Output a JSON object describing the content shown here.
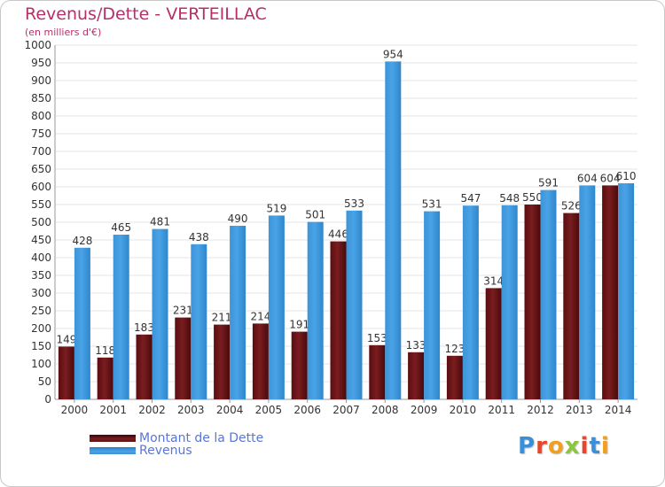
{
  "colors": {
    "dette": "#7a1d20",
    "revenus": "#4aa3e6",
    "title": "#b5306a",
    "legend_text": "#5a76d6",
    "axis_text": "#333333",
    "grid": "#e6e6e6"
  },
  "header": {
    "title": "Revenus/Dette - VERTEILLAC",
    "subtitle": "(en milliers d'€)"
  },
  "legend": {
    "items": [
      {
        "label": "Montant de la Dette",
        "color_key": "dette"
      },
      {
        "label": "Revenus",
        "color_key": "revenus"
      }
    ]
  },
  "logo": {
    "text": "Proxiti",
    "letters": [
      "P",
      "r",
      "o",
      "x",
      "i",
      "t",
      "i"
    ]
  },
  "chart_data": {
    "type": "bar",
    "title": "Revenus/Dette - VERTEILLAC",
    "subtitle": "(en milliers d'€)",
    "categories": [
      "2000",
      "2001",
      "2002",
      "2003",
      "2004",
      "2005",
      "2006",
      "2007",
      "2008",
      "2009",
      "2010",
      "2011",
      "2012",
      "2013",
      "2014"
    ],
    "series": [
      {
        "name": "Montant de la Dette",
        "values": [
          149,
          118,
          183,
          231,
          211,
          214,
          191,
          446,
          153,
          133,
          123,
          314,
          550,
          526,
          604
        ]
      },
      {
        "name": "Revenus",
        "values": [
          428,
          465,
          481,
          438,
          490,
          519,
          501,
          533,
          954,
          531,
          547,
          548,
          591,
          604,
          610
        ]
      }
    ],
    "ylim": [
      0,
      1000
    ],
    "y_ticks": [
      "0",
      "50",
      "100",
      "150",
      "200",
      "250",
      "300",
      "350",
      "400",
      "450",
      "500",
      "550",
      "600",
      "650",
      "700",
      "750",
      "800",
      "850",
      "900",
      "950",
      "1000"
    ],
    "grid": true,
    "legend_position": "bottom-left"
  }
}
